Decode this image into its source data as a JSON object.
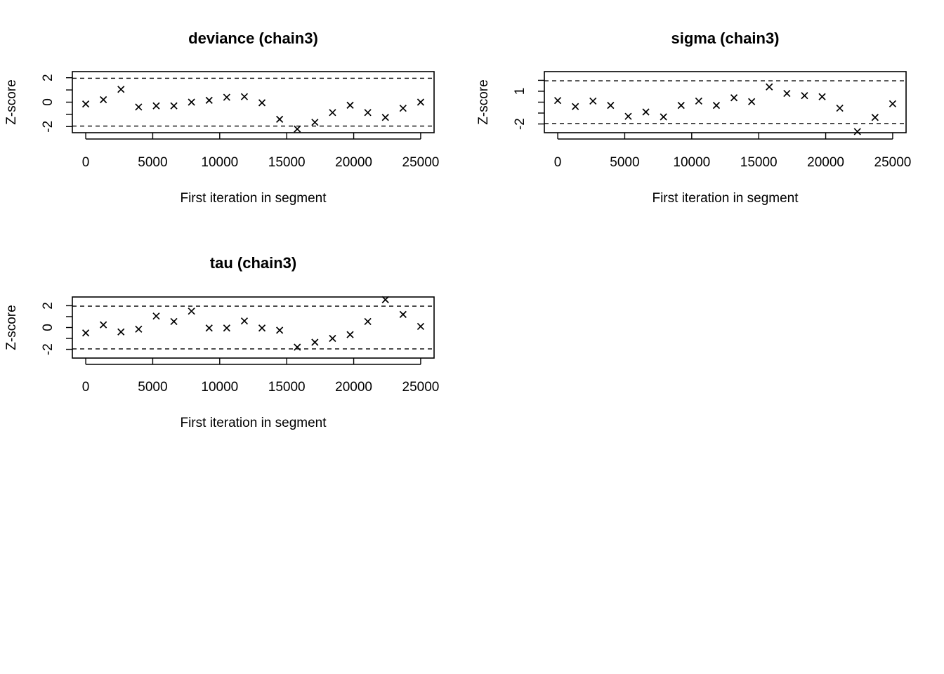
{
  "chart_data": [
    {
      "type": "scatter",
      "title": "deviance (chain3)",
      "xlabel": "First iteration in segment",
      "ylabel": "Z-score",
      "xlim": [
        -1000,
        26000
      ],
      "ylim": [
        -2.5,
        2.5
      ],
      "xticks": [
        0,
        5000,
        10000,
        15000,
        20000,
        25000
      ],
      "yticks": [
        -2,
        -1,
        0,
        1,
        2
      ],
      "ytick_labels": [
        "-2",
        "",
        "0",
        "",
        "2"
      ],
      "reference_lines": [
        -1.96,
        1.96
      ],
      "marker": "x",
      "x": [
        0,
        1315,
        2631,
        3947,
        5263,
        6578,
        7894,
        9210,
        10526,
        11842,
        13157,
        14473,
        15789,
        17105,
        18421,
        19736,
        21052,
        22368,
        23684,
        25000
      ],
      "y": [
        -0.15,
        0.2,
        1.05,
        -0.4,
        -0.3,
        -0.3,
        0.0,
        0.15,
        0.4,
        0.45,
        -0.05,
        -1.4,
        -2.2,
        -1.65,
        -0.85,
        -0.25,
        -0.85,
        -1.25,
        -0.5,
        0.0
      ]
    },
    {
      "type": "scatter",
      "title": "sigma (chain3)",
      "xlabel": "First iteration in segment",
      "ylabel": "Z-score",
      "xlim": [
        -1000,
        26000
      ],
      "ylim": [
        -2.8,
        2.8
      ],
      "xticks": [
        0,
        5000,
        10000,
        15000,
        20000,
        25000
      ],
      "yticks": [
        -2,
        -1,
        0,
        1,
        2
      ],
      "ytick_labels": [
        "-2",
        "",
        "",
        "1",
        ""
      ],
      "reference_lines": [
        -1.96,
        1.96
      ],
      "marker": "x",
      "x": [
        0,
        1315,
        2631,
        3947,
        5263,
        6578,
        7894,
        9210,
        10526,
        11842,
        13157,
        14473,
        15789,
        17105,
        18421,
        19736,
        21052,
        22368,
        23684,
        25000
      ],
      "y": [
        0.15,
        -0.4,
        0.1,
        -0.3,
        -1.3,
        -0.9,
        -1.35,
        -0.3,
        0.1,
        -0.3,
        0.4,
        0.05,
        1.4,
        0.8,
        0.6,
        0.5,
        -0.55,
        -2.7,
        -1.4,
        -0.15
      ]
    },
    {
      "type": "scatter",
      "title": "tau (chain3)",
      "xlabel": "First iteration in segment",
      "ylabel": "Z-score",
      "xlim": [
        -1000,
        26000
      ],
      "ylim": [
        -2.8,
        2.8
      ],
      "xticks": [
        0,
        5000,
        10000,
        15000,
        20000,
        25000
      ],
      "yticks": [
        -2,
        -1,
        0,
        1,
        2
      ],
      "ytick_labels": [
        "-2",
        "",
        "0",
        "",
        "2"
      ],
      "reference_lines": [
        -1.96,
        1.96
      ],
      "marker": "x",
      "x": [
        0,
        1315,
        2631,
        3947,
        5263,
        6578,
        7894,
        9210,
        10526,
        11842,
        13157,
        14473,
        15789,
        17105,
        18421,
        19736,
        21052,
        22368,
        23684,
        25000
      ],
      "y": [
        -0.5,
        0.25,
        -0.4,
        -0.15,
        1.05,
        0.55,
        1.5,
        -0.05,
        -0.05,
        0.6,
        -0.05,
        -0.25,
        -1.8,
        -1.35,
        -1.0,
        -0.65,
        0.55,
        2.55,
        1.2,
        0.1
      ]
    }
  ]
}
